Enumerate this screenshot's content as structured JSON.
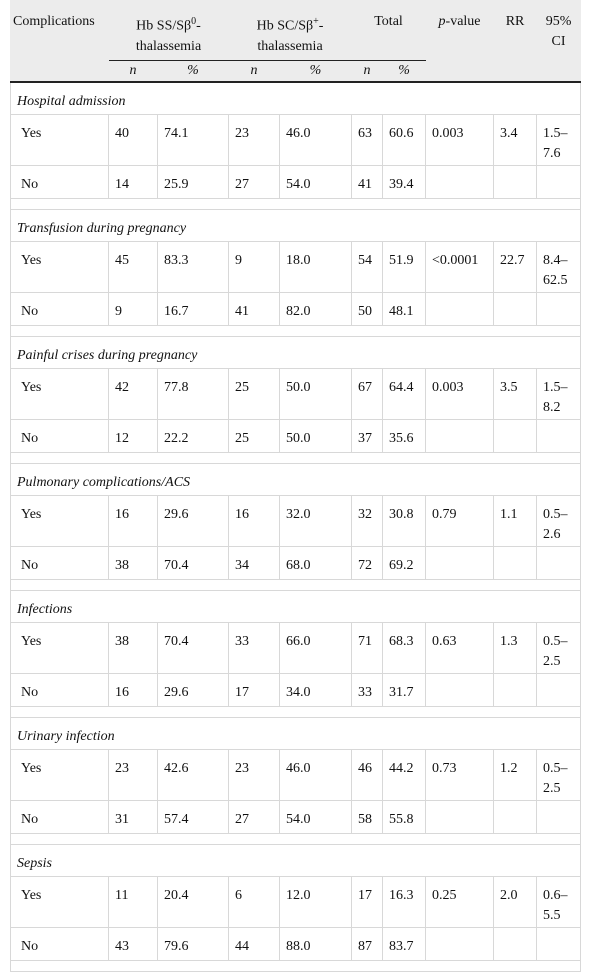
{
  "table": {
    "header": {
      "complications": "Complications",
      "group1": [
        "Hb SS/Sβ",
        "0",
        "-thalassemia"
      ],
      "group2": [
        "Hb SC/Sβ",
        "+",
        "-thalassemia"
      ],
      "total": "Total",
      "p_value": [
        "p",
        "-value"
      ],
      "rr": "RR",
      "ci": "95% CI",
      "subheaders": [
        "n",
        "%",
        "n",
        "%",
        "n",
        "%"
      ]
    },
    "groups": [
      {
        "title": "Hospital admission",
        "rows": [
          [
            "Yes",
            "40",
            "74.1",
            "23",
            "46.0",
            "63",
            "60.6",
            "0.003",
            "3.4",
            "1.5–7.6"
          ],
          [
            "No",
            "14",
            "25.9",
            "27",
            "54.0",
            "41",
            "39.4"
          ]
        ]
      },
      {
        "title": "Transfusion during pregnancy",
        "rows": [
          [
            "Yes",
            "45",
            "83.3",
            "9",
            "18.0",
            "54",
            "51.9",
            "<0.0001",
            "22.7",
            "8.4–62.5"
          ],
          [
            "No",
            "9",
            "16.7",
            "41",
            "82.0",
            "50",
            "48.1"
          ]
        ]
      },
      {
        "title": "Painful crises during pregnancy",
        "rows": [
          [
            "Yes",
            "42",
            "77.8",
            "25",
            "50.0",
            "67",
            "64.4",
            "0.003",
            "3.5",
            "1.5–8.2"
          ],
          [
            "No",
            "12",
            "22.2",
            "25",
            "50.0",
            "37",
            "35.6"
          ]
        ]
      },
      {
        "title": "Pulmonary complications/ACS",
        "rows": [
          [
            "Yes",
            "16",
            "29.6",
            "16",
            "32.0",
            "32",
            "30.8",
            "0.79",
            "1.1",
            "0.5–2.6"
          ],
          [
            "No",
            "38",
            "70.4",
            "34",
            "68.0",
            "72",
            "69.2"
          ]
        ]
      },
      {
        "title": "Infections",
        "rows": [
          [
            "Yes",
            "38",
            "70.4",
            "33",
            "66.0",
            "71",
            "68.3",
            "0.63",
            "1.3",
            "0.5–2.5"
          ],
          [
            "No",
            "16",
            "29.6",
            "17",
            "34.0",
            "33",
            "31.7"
          ]
        ]
      },
      {
        "title": "Urinary infection",
        "rows": [
          [
            "Yes",
            "23",
            "42.6",
            "23",
            "46.0",
            "46",
            "44.2",
            "0.73",
            "1.2",
            "0.5–2.5"
          ],
          [
            "No",
            "31",
            "57.4",
            "27",
            "54.0",
            "58",
            "55.8"
          ]
        ]
      },
      {
        "title": "Sepsis",
        "rows": [
          [
            "Yes",
            "11",
            "20.4",
            "6",
            "12.0",
            "17",
            "16.3",
            "0.25",
            "2.0",
            "0.6–5.5"
          ],
          [
            "No",
            "43",
            "79.6",
            "44",
            "88.0",
            "87",
            "83.7"
          ]
        ]
      }
    ]
  }
}
